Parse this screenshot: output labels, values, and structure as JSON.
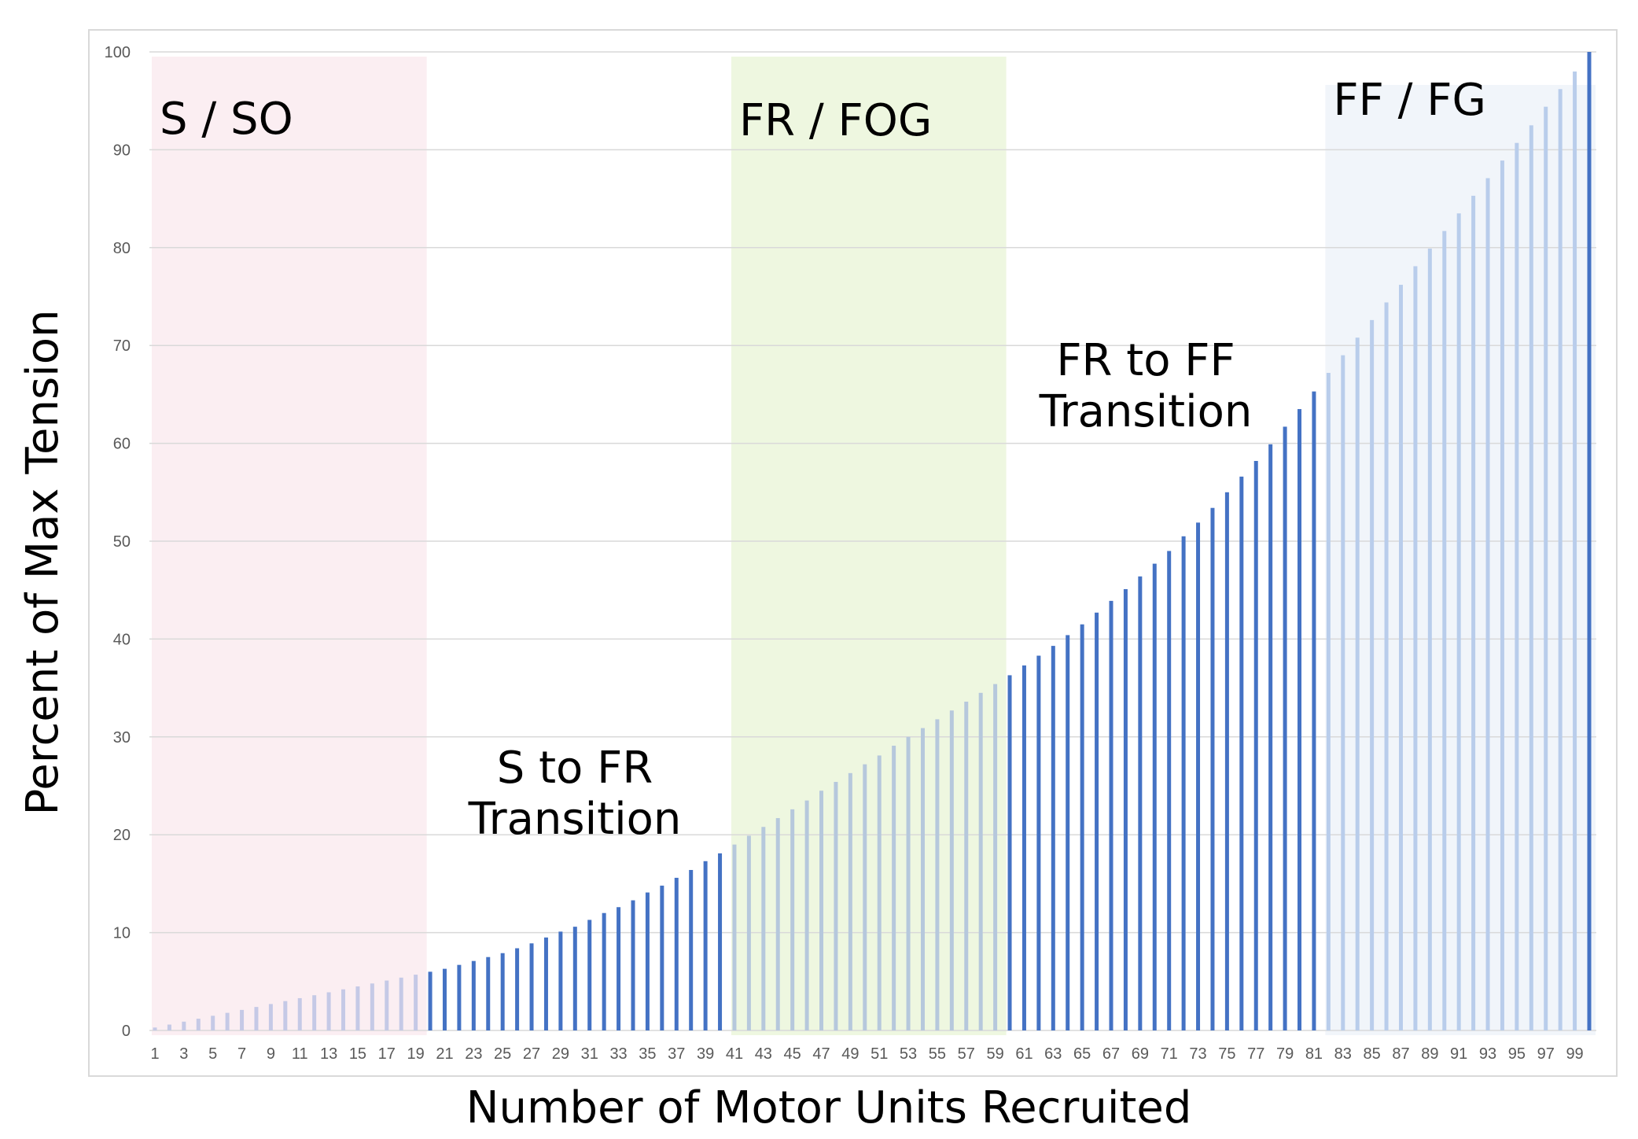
{
  "chart_data": {
    "type": "bar",
    "xlabel": "Number of Motor Units Recruited",
    "ylabel": "Percent of Max Tension",
    "ylim": [
      0,
      100
    ],
    "yticks": [
      0,
      10,
      20,
      30,
      40,
      50,
      60,
      70,
      80,
      90,
      100
    ],
    "x_tick_labels": [
      "1",
      "3",
      "5",
      "7",
      "9",
      "11",
      "13",
      "15",
      "17",
      "19",
      "21",
      "23",
      "25",
      "27",
      "29",
      "31",
      "33",
      "35",
      "37",
      "39",
      "41",
      "43",
      "45",
      "47",
      "49",
      "51",
      "53",
      "55",
      "57",
      "59",
      "61",
      "63",
      "65",
      "67",
      "69",
      "71",
      "73",
      "75",
      "77",
      "79",
      "81",
      "83",
      "85",
      "87",
      "89",
      "91",
      "93",
      "95",
      "97",
      "99"
    ],
    "grid": "horizontal",
    "categories": [
      1,
      2,
      3,
      4,
      5,
      6,
      7,
      8,
      9,
      10,
      11,
      12,
      13,
      14,
      15,
      16,
      17,
      18,
      19,
      20,
      21,
      22,
      23,
      24,
      25,
      26,
      27,
      28,
      29,
      30,
      31,
      32,
      33,
      34,
      35,
      36,
      37,
      38,
      39,
      40,
      41,
      42,
      43,
      44,
      45,
      46,
      47,
      48,
      49,
      50,
      51,
      52,
      53,
      54,
      55,
      56,
      57,
      58,
      59,
      60,
      61,
      62,
      63,
      64,
      65,
      66,
      67,
      68,
      69,
      70,
      71,
      72,
      73,
      74,
      75,
      76,
      77,
      78,
      79,
      80,
      81,
      82,
      83,
      84,
      85,
      86,
      87,
      88,
      89,
      90,
      91,
      92,
      93,
      94,
      95,
      96,
      97,
      98,
      99,
      100
    ],
    "values": [
      0.3,
      0.6,
      0.9,
      1.2,
      1.5,
      1.8,
      2.1,
      2.4,
      2.7,
      3.0,
      3.3,
      3.6,
      3.9,
      4.2,
      4.5,
      4.8,
      5.1,
      5.4,
      5.7,
      6.0,
      6.3,
      6.7,
      7.1,
      7.5,
      7.9,
      8.4,
      8.9,
      9.5,
      10.1,
      10.6,
      11.3,
      12.0,
      12.6,
      13.3,
      14.1,
      14.8,
      15.6,
      16.4,
      17.3,
      18.1,
      19.0,
      19.9,
      20.8,
      21.7,
      22.6,
      23.5,
      24.5,
      25.4,
      26.3,
      27.2,
      28.1,
      29.1,
      30.0,
      30.9,
      31.8,
      32.7,
      33.6,
      34.5,
      35.4,
      36.3,
      37.3,
      38.3,
      39.3,
      40.4,
      41.5,
      42.7,
      43.9,
      45.1,
      46.4,
      47.7,
      49.0,
      50.5,
      51.9,
      53.4,
      55.0,
      56.6,
      58.2,
      59.9,
      61.7,
      63.5,
      65.3,
      67.2,
      69.0,
      70.8,
      72.6,
      74.4,
      76.2,
      78.1,
      79.9,
      81.7,
      83.5,
      85.3,
      87.1,
      88.9,
      90.7,
      92.5,
      94.4,
      96.2,
      98.0,
      100.0
    ],
    "regions": [
      {
        "label": "S / SO",
        "from": 1,
        "to": 19,
        "fill": "#fbeef2",
        "bar_color": "#c5c9e6"
      },
      {
        "label": "FR / FOG",
        "from": 41,
        "to": 59,
        "fill": "#eef7e0",
        "bar_color": "#b6c8dc"
      },
      {
        "label": "FF / FG",
        "from": 82,
        "to": 100,
        "fill": "#f1f5fa",
        "bar_color": "#b9cdeb"
      }
    ],
    "transitions": [
      {
        "label_line1": "S to FR",
        "label_line2": "Transition",
        "from": 20,
        "to": 40
      },
      {
        "label_line1": "FR to FF",
        "label_line2": "Transition",
        "from": 60,
        "to": 81
      }
    ],
    "colors": {
      "transition_bar": "#4472c4",
      "last_bar": "#4472c4",
      "grid": "#d9d9d9",
      "frame": "#d9d9d9"
    }
  }
}
